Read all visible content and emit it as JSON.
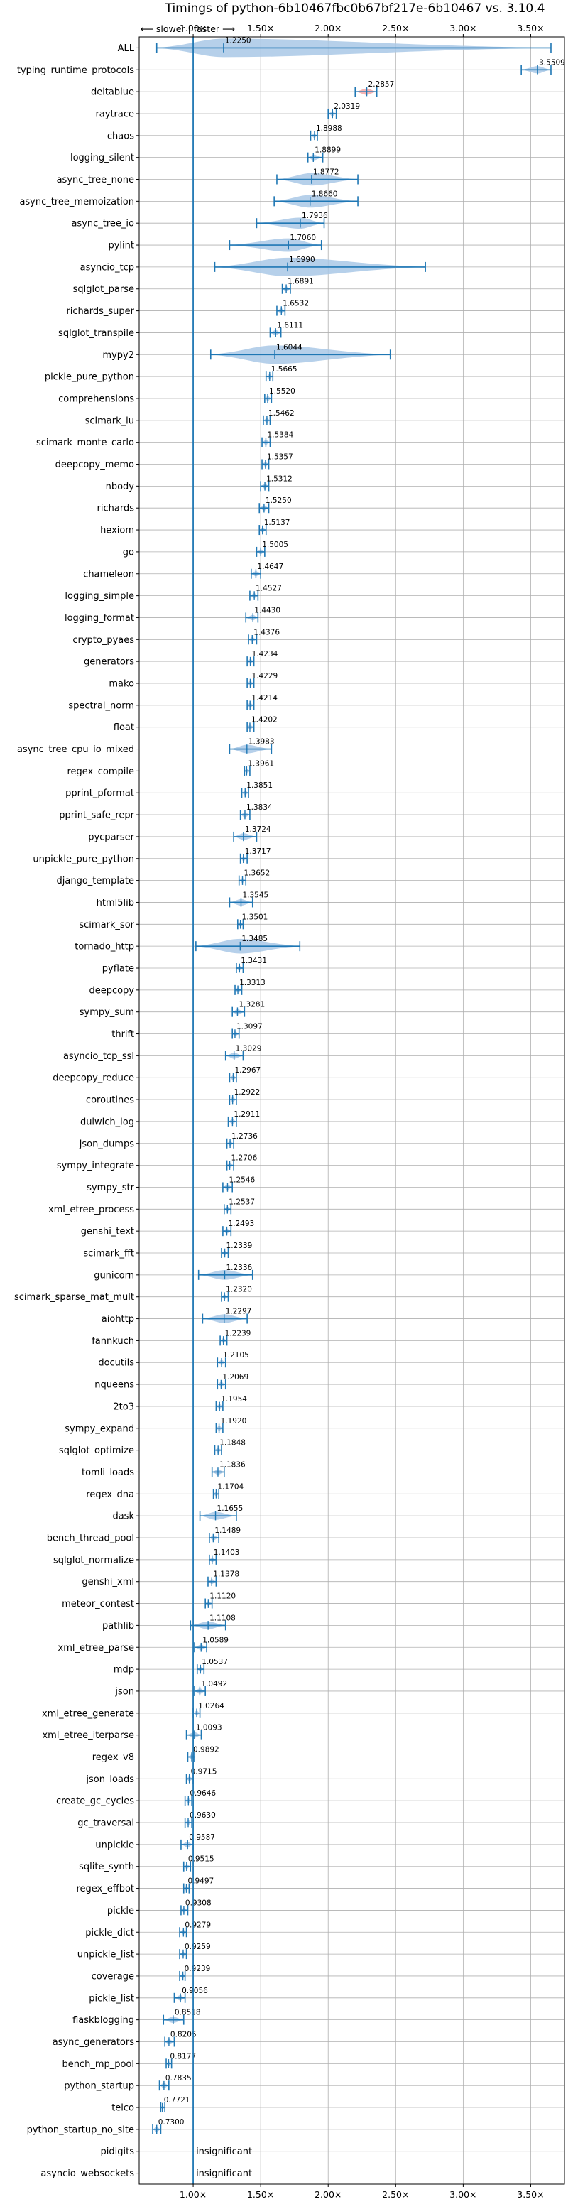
{
  "chart_data": {
    "type": "violin",
    "title": "Timings of python-6b10467fbc0b67bf217e-6b10467 vs. 3.10.4",
    "direction_hint": "⟵ slower | faster ⟶",
    "xlim": [
      0.6,
      3.75
    ],
    "xticks": [
      1.0,
      1.5,
      2.0,
      2.5,
      3.0,
      3.5
    ],
    "xtick_labels": [
      "1.00×",
      "1.50×",
      "2.00×",
      "2.50×",
      "3.00×",
      "3.50×"
    ],
    "reference_line": 1.0,
    "grid": true,
    "colors": {
      "violin": "#a9c8e6",
      "violin_highlight": "#f2a7a7",
      "line": "#1f77b4",
      "grid": "#b0b0b0"
    },
    "categories": [
      "ALL",
      "typing_runtime_protocols",
      "deltablue",
      "raytrace",
      "chaos",
      "logging_silent",
      "async_tree_none",
      "async_tree_memoization",
      "async_tree_io",
      "pylint",
      "asyncio_tcp",
      "sqlglot_parse",
      "richards_super",
      "sqlglot_transpile",
      "mypy2",
      "pickle_pure_python",
      "comprehensions",
      "scimark_lu",
      "scimark_monte_carlo",
      "deepcopy_memo",
      "nbody",
      "richards",
      "hexiom",
      "go",
      "chameleon",
      "logging_simple",
      "logging_format",
      "crypto_pyaes",
      "generators",
      "mako",
      "spectral_norm",
      "float",
      "async_tree_cpu_io_mixed",
      "regex_compile",
      "pprint_pformat",
      "pprint_safe_repr",
      "pycparser",
      "unpickle_pure_python",
      "django_template",
      "html5lib",
      "scimark_sor",
      "tornado_http",
      "pyflate",
      "deepcopy",
      "sympy_sum",
      "thrift",
      "asyncio_tcp_ssl",
      "deepcopy_reduce",
      "coroutines",
      "dulwich_log",
      "json_dumps",
      "sympy_integrate",
      "sympy_str",
      "xml_etree_process",
      "genshi_text",
      "scimark_fft",
      "gunicorn",
      "scimark_sparse_mat_mult",
      "aiohttp",
      "fannkuch",
      "docutils",
      "nqueens",
      "2to3",
      "sympy_expand",
      "sqlglot_optimize",
      "tomli_loads",
      "regex_dna",
      "dask",
      "bench_thread_pool",
      "sqlglot_normalize",
      "genshi_xml",
      "meteor_contest",
      "pathlib",
      "xml_etree_parse",
      "mdp",
      "json",
      "xml_etree_generate",
      "xml_etree_iterparse",
      "regex_v8",
      "json_loads",
      "create_gc_cycles",
      "gc_traversal",
      "unpickle",
      "sqlite_synth",
      "regex_effbot",
      "pickle",
      "pickle_dict",
      "unpickle_list",
      "coverage",
      "pickle_list",
      "flaskblogging",
      "async_generators",
      "bench_mp_pool",
      "python_startup",
      "telco",
      "python_startup_no_site",
      "pidigits",
      "asyncio_websockets"
    ],
    "values": [
      1.225,
      3.5509,
      2.2857,
      2.0319,
      1.8988,
      1.8899,
      1.8772,
      1.866,
      1.7936,
      1.706,
      1.699,
      1.6891,
      1.6532,
      1.6111,
      1.6044,
      1.5665,
      1.552,
      1.5462,
      1.5384,
      1.5357,
      1.5312,
      1.525,
      1.5137,
      1.5005,
      1.4647,
      1.4527,
      1.443,
      1.4376,
      1.4234,
      1.4229,
      1.4214,
      1.4202,
      1.3983,
      1.3961,
      1.3851,
      1.3834,
      1.3724,
      1.3717,
      1.3652,
      1.3545,
      1.3501,
      1.3485,
      1.3431,
      1.3313,
      1.3281,
      1.3097,
      1.3029,
      1.2967,
      1.2922,
      1.2911,
      1.2736,
      1.2706,
      1.2546,
      1.2537,
      1.2493,
      1.2339,
      1.2336,
      1.232,
      1.2297,
      1.2239,
      1.2105,
      1.2069,
      1.1954,
      1.192,
      1.1848,
      1.1836,
      1.1704,
      1.1655,
      1.1489,
      1.1403,
      1.1378,
      1.112,
      1.1108,
      1.0589,
      1.0537,
      1.0492,
      1.0264,
      1.0093,
      0.9892,
      0.9715,
      0.9646,
      0.963,
      0.9587,
      0.9515,
      0.9497,
      0.9308,
      0.9279,
      0.9259,
      0.9239,
      0.9056,
      0.8518,
      0.8205,
      0.8177,
      0.7835,
      0.7721,
      0.73,
      null,
      null
    ],
    "value_labels": [
      "1.2250",
      "3.5509",
      "2.2857",
      "2.0319",
      "1.8988",
      "1.8899",
      "1.8772",
      "1.8660",
      "1.7936",
      "1.7060",
      "1.6990",
      "1.6891",
      "1.6532",
      "1.6111",
      "1.6044",
      "1.5665",
      "1.5520",
      "1.5462",
      "1.5384",
      "1.5357",
      "1.5312",
      "1.5250",
      "1.5137",
      "1.5005",
      "1.4647",
      "1.4527",
      "1.4430",
      "1.4376",
      "1.4234",
      "1.4229",
      "1.4214",
      "1.4202",
      "1.3983",
      "1.3961",
      "1.3851",
      "1.3834",
      "1.3724",
      "1.3717",
      "1.3652",
      "1.3545",
      "1.3501",
      "1.3485",
      "1.3431",
      "1.3313",
      "1.3281",
      "1.3097",
      "1.3029",
      "1.2967",
      "1.2922",
      "1.2911",
      "1.2736",
      "1.2706",
      "1.2546",
      "1.2537",
      "1.2493",
      "1.2339",
      "1.2336",
      "1.2320",
      "1.2297",
      "1.2239",
      "1.2105",
      "1.2069",
      "1.1954",
      "1.1920",
      "1.1848",
      "1.1836",
      "1.1704",
      "1.1655",
      "1.1489",
      "1.1403",
      "1.1378",
      "1.1120",
      "1.1108",
      "1.0589",
      "1.0537",
      "1.0492",
      "1.0264",
      "1.0093",
      "0.9892",
      "0.9715",
      "0.9646",
      "0.9630",
      "0.9587",
      "0.9515",
      "0.9497",
      "0.9308",
      "0.9279",
      "0.9259",
      "0.9239",
      "0.9056",
      "0.8518",
      "0.8205",
      "0.8177",
      "0.7835",
      "0.7721",
      "0.7300",
      "insignificant",
      "insignificant"
    ],
    "ranges": {
      "ALL": [
        0.73,
        3.65
      ],
      "typing_runtime_protocols": [
        3.43,
        3.65
      ],
      "deltablue": [
        2.2,
        2.36
      ],
      "raytrace": [
        2.0,
        2.06
      ],
      "chaos": [
        1.87,
        1.92
      ],
      "logging_silent": [
        1.85,
        1.96
      ],
      "async_tree_none": [
        1.62,
        2.22
      ],
      "async_tree_memoization": [
        1.6,
        2.22
      ],
      "async_tree_io": [
        1.47,
        1.97
      ],
      "pylint": [
        1.27,
        1.95
      ],
      "asyncio_tcp": [
        1.16,
        2.72
      ],
      "sqlglot_parse": [
        1.66,
        1.72
      ],
      "richards_super": [
        1.62,
        1.68
      ],
      "sqlglot_transpile": [
        1.57,
        1.65
      ],
      "mypy2": [
        1.13,
        2.46
      ],
      "pickle_pure_python": [
        1.54,
        1.59
      ],
      "comprehensions": [
        1.53,
        1.58
      ],
      "scimark_lu": [
        1.52,
        1.57
      ],
      "scimark_monte_carlo": [
        1.51,
        1.57
      ],
      "deepcopy_memo": [
        1.51,
        1.56
      ],
      "nbody": [
        1.5,
        1.56
      ],
      "richards": [
        1.49,
        1.56
      ],
      "hexiom": [
        1.49,
        1.54
      ],
      "go": [
        1.47,
        1.53
      ],
      "chameleon": [
        1.43,
        1.5
      ],
      "logging_simple": [
        1.42,
        1.48
      ],
      "logging_format": [
        1.39,
        1.48
      ],
      "crypto_pyaes": [
        1.41,
        1.47
      ],
      "generators": [
        1.4,
        1.45
      ],
      "mako": [
        1.4,
        1.45
      ],
      "spectral_norm": [
        1.4,
        1.45
      ],
      "float": [
        1.4,
        1.45
      ],
      "async_tree_cpu_io_mixed": [
        1.27,
        1.58
      ],
      "regex_compile": [
        1.38,
        1.42
      ],
      "pprint_pformat": [
        1.36,
        1.41
      ],
      "pprint_safe_repr": [
        1.35,
        1.42
      ],
      "pycparser": [
        1.3,
        1.47
      ],
      "unpickle_pure_python": [
        1.35,
        1.4
      ],
      "django_template": [
        1.34,
        1.39
      ],
      "html5lib": [
        1.27,
        1.44
      ],
      "scimark_sor": [
        1.33,
        1.37
      ],
      "tornado_http": [
        1.02,
        1.79
      ],
      "pyflate": [
        1.32,
        1.37
      ],
      "deepcopy": [
        1.31,
        1.36
      ],
      "sympy_sum": [
        1.29,
        1.38
      ],
      "thrift": [
        1.29,
        1.34
      ],
      "asyncio_tcp_ssl": [
        1.24,
        1.37
      ],
      "deepcopy_reduce": [
        1.27,
        1.32
      ],
      "coroutines": [
        1.27,
        1.32
      ],
      "dulwich_log": [
        1.26,
        1.32
      ],
      "json_dumps": [
        1.25,
        1.3
      ],
      "sympy_integrate": [
        1.25,
        1.3
      ],
      "sympy_str": [
        1.22,
        1.29
      ],
      "xml_etree_process": [
        1.23,
        1.28
      ],
      "genshi_text": [
        1.22,
        1.28
      ],
      "scimark_fft": [
        1.21,
        1.26
      ],
      "gunicorn": [
        1.04,
        1.44
      ],
      "scimark_sparse_mat_mult": [
        1.21,
        1.26
      ],
      "aiohttp": [
        1.07,
        1.4
      ],
      "fannkuch": [
        1.2,
        1.25
      ],
      "docutils": [
        1.18,
        1.24
      ],
      "nqueens": [
        1.18,
        1.24
      ],
      "2to3": [
        1.17,
        1.22
      ],
      "sympy_expand": [
        1.17,
        1.22
      ],
      "sqlglot_optimize": [
        1.16,
        1.21
      ],
      "tomli_loads": [
        1.14,
        1.23
      ],
      "regex_dna": [
        1.15,
        1.19
      ],
      "dask": [
        1.05,
        1.32
      ],
      "bench_thread_pool": [
        1.12,
        1.19
      ],
      "sqlglot_normalize": [
        1.12,
        1.17
      ],
      "genshi_xml": [
        1.11,
        1.17
      ],
      "meteor_contest": [
        1.09,
        1.14
      ],
      "pathlib": [
        0.98,
        1.24
      ],
      "xml_etree_parse": [
        1.01,
        1.1
      ],
      "mdp": [
        1.03,
        1.08
      ],
      "json": [
        1.01,
        1.09
      ],
      "xml_etree_generate": [
        1.0,
        1.05
      ],
      "xml_etree_iterparse": [
        0.95,
        1.06
      ],
      "regex_v8": [
        0.96,
        1.01
      ],
      "json_loads": [
        0.95,
        1.0
      ],
      "create_gc_cycles": [
        0.94,
        0.99
      ],
      "gc_traversal": [
        0.94,
        0.99
      ],
      "unpickle": [
        0.91,
        1.0
      ],
      "sqlite_synth": [
        0.93,
        0.98
      ],
      "regex_effbot": [
        0.93,
        0.97
      ],
      "pickle": [
        0.91,
        0.96
      ],
      "pickle_dict": [
        0.9,
        0.95
      ],
      "unpickle_list": [
        0.9,
        0.95
      ],
      "coverage": [
        0.9,
        0.94
      ],
      "pickle_list": [
        0.86,
        0.94
      ],
      "flaskblogging": [
        0.78,
        0.93
      ],
      "async_generators": [
        0.79,
        0.86
      ],
      "bench_mp_pool": [
        0.8,
        0.84
      ],
      "python_startup": [
        0.75,
        0.82
      ],
      "telco": [
        0.76,
        0.79
      ],
      "python_startup_no_site": [
        0.7,
        0.76
      ],
      "pidigits": null,
      "asyncio_websockets": null
    },
    "highlight": [
      "deltablue"
    ]
  }
}
